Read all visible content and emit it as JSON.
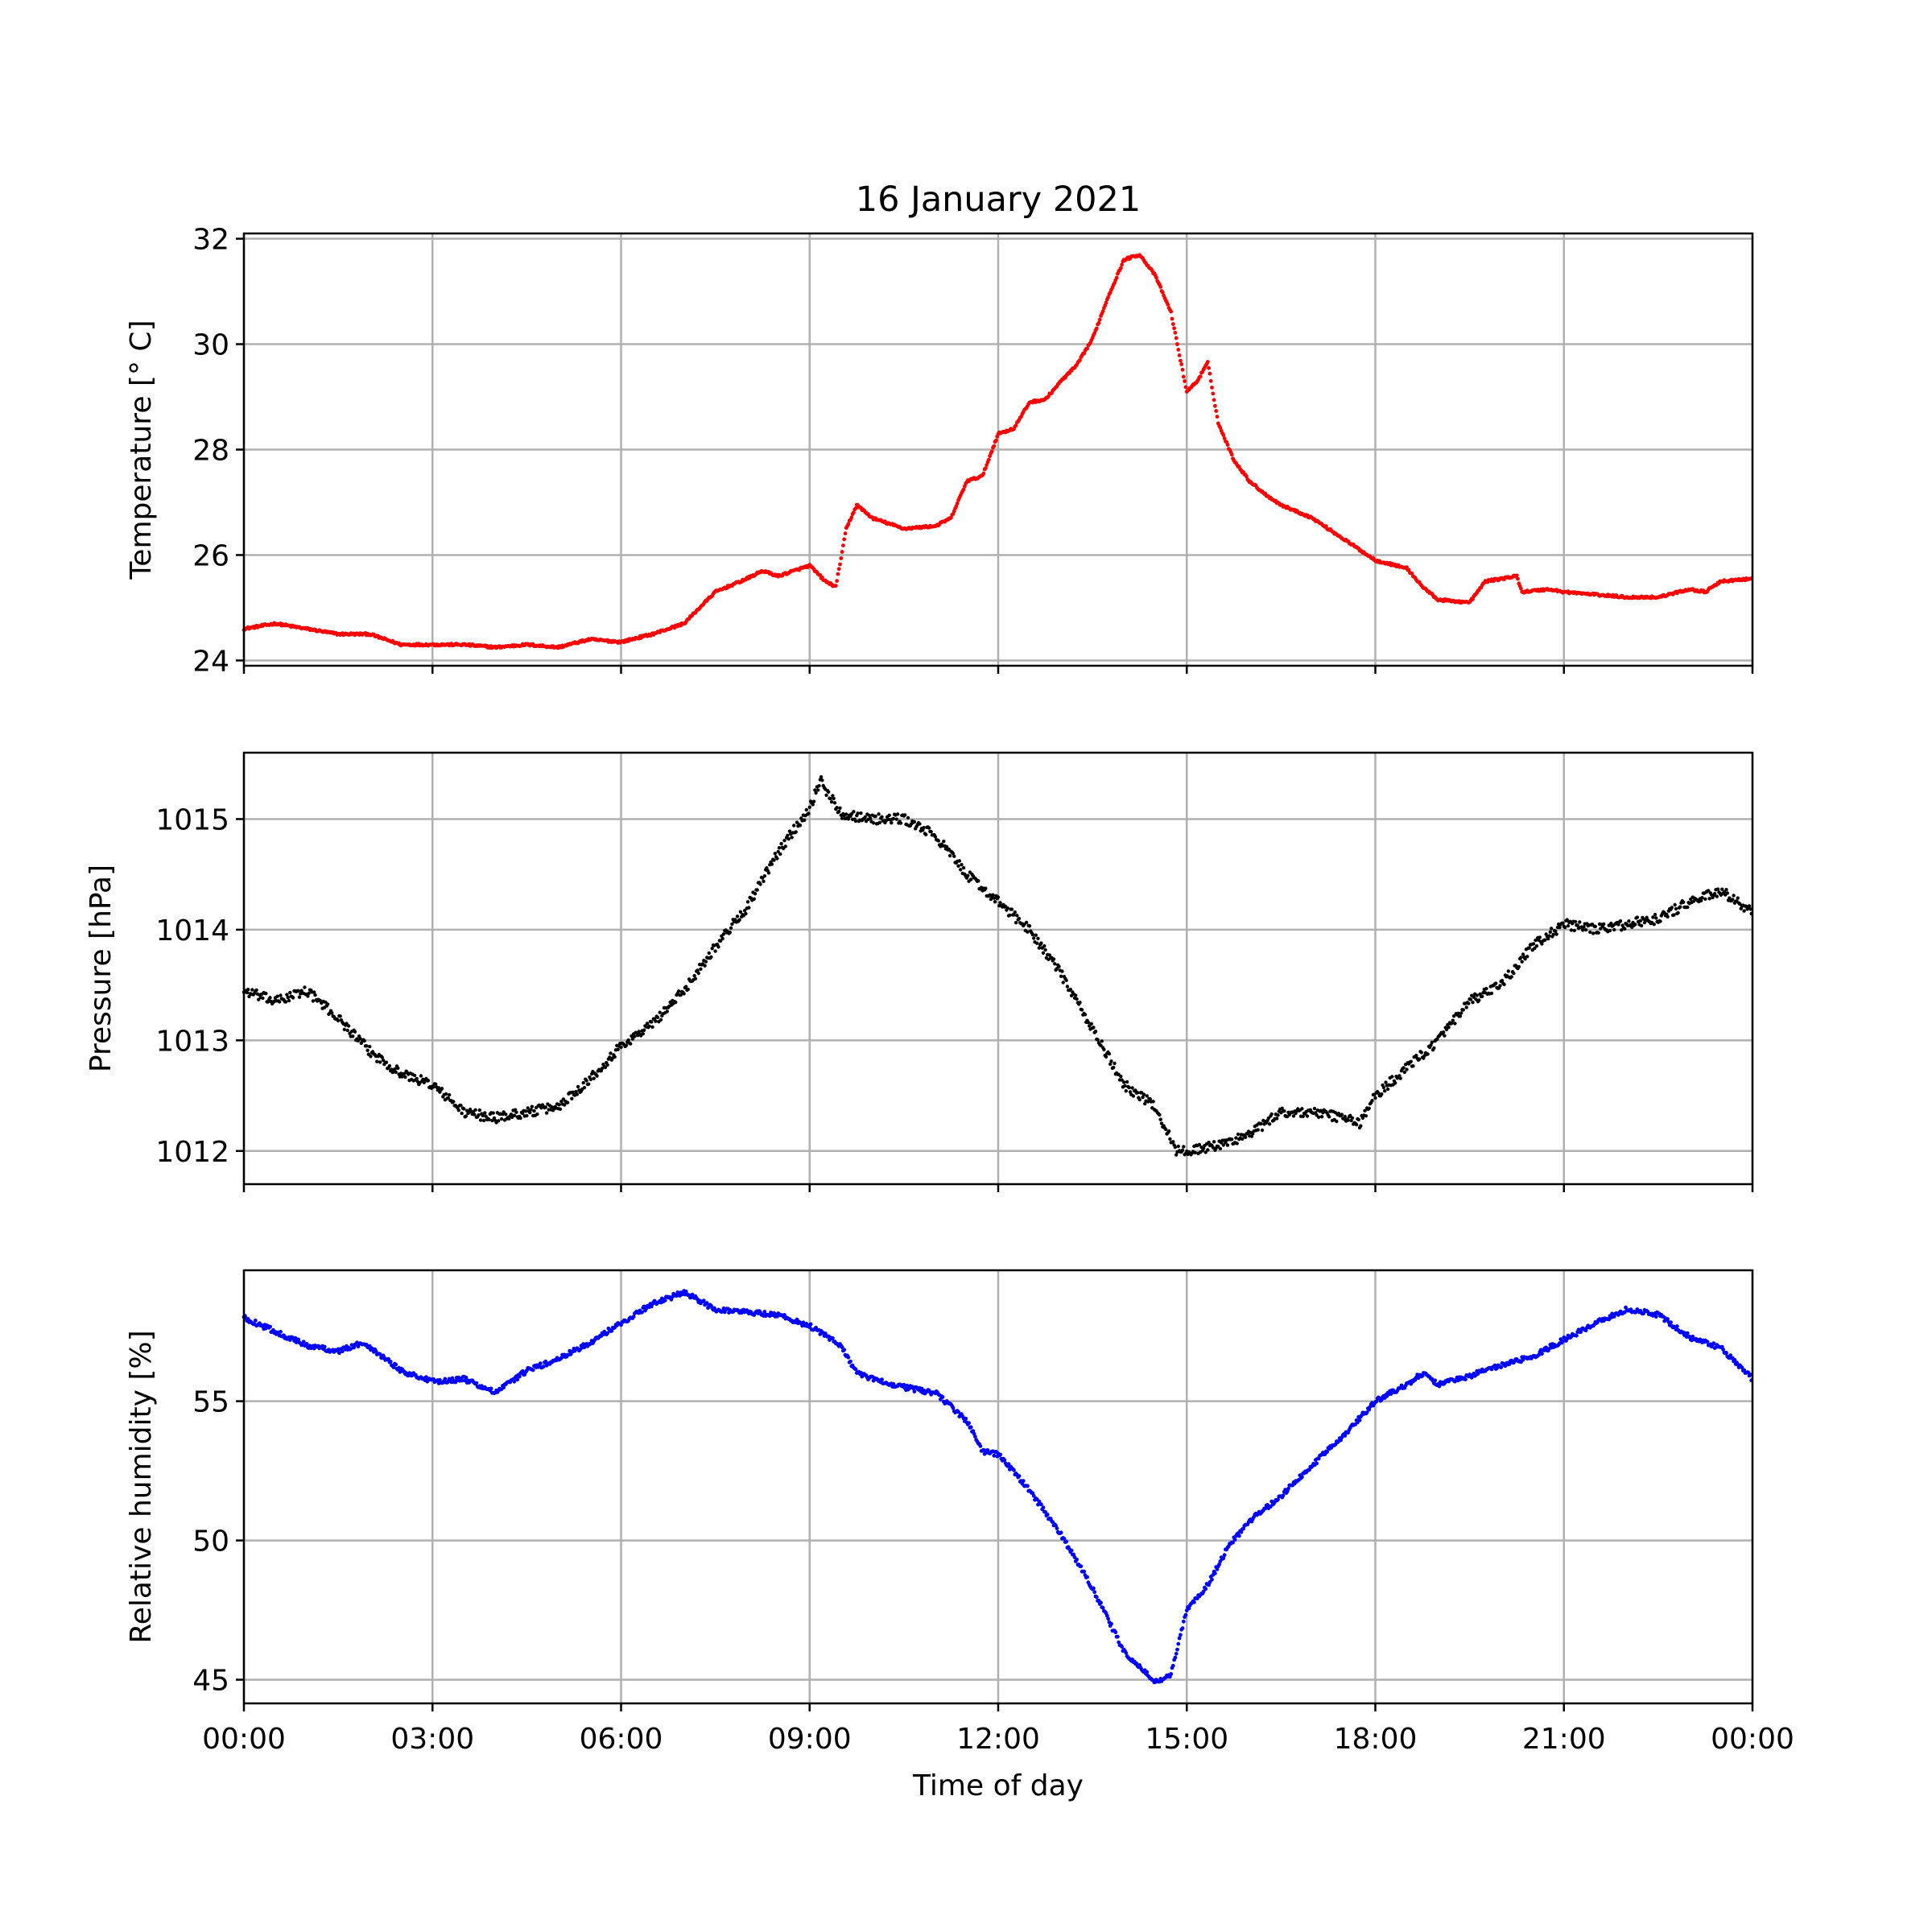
{
  "chart_data": {
    "title": "16 January 2021",
    "type": "scatter",
    "x_unit": "time of day",
    "xlim": [
      "00:00",
      "24:00"
    ],
    "x_tick_labels": [
      "00:00",
      "03:00",
      "06:00",
      "09:00",
      "12:00",
      "15:00",
      "18:00",
      "21:00",
      "00:00"
    ],
    "xlabel": "Time of day",
    "grid": true,
    "panels": [
      {
        "ylabel": "Temperature [° C]",
        "color": "#ff0000",
        "ylim": [
          23.9,
          32.1
        ],
        "y_ticks": [
          24,
          26,
          28,
          30,
          32
        ],
        "y_tick_labels": [
          "24",
          "26",
          "28",
          "30",
          "32"
        ],
        "points": [
          [
            "00:00",
            24.6
          ],
          [
            "00:30",
            24.7
          ],
          [
            "01:00",
            24.6
          ],
          [
            "01:30",
            24.5
          ],
          [
            "02:00",
            24.5
          ],
          [
            "02:30",
            24.3
          ],
          [
            "03:00",
            24.3
          ],
          [
            "03:30",
            24.3
          ],
          [
            "04:00",
            24.25
          ],
          [
            "04:30",
            24.3
          ],
          [
            "05:00",
            24.25
          ],
          [
            "05:30",
            24.4
          ],
          [
            "06:00",
            24.35
          ],
          [
            "06:30",
            24.5
          ],
          [
            "07:00",
            24.7
          ],
          [
            "07:30",
            25.3
          ],
          [
            "08:00",
            25.55
          ],
          [
            "08:15",
            25.7
          ],
          [
            "08:30",
            25.6
          ],
          [
            "09:00",
            25.8
          ],
          [
            "09:15",
            25.5
          ],
          [
            "09:25",
            25.4
          ],
          [
            "09:35",
            26.5
          ],
          [
            "09:45",
            26.95
          ],
          [
            "10:00",
            26.7
          ],
          [
            "10:30",
            26.5
          ],
          [
            "11:00",
            26.55
          ],
          [
            "11:15",
            26.7
          ],
          [
            "11:30",
            27.4
          ],
          [
            "11:45",
            27.5
          ],
          [
            "12:00",
            28.3
          ],
          [
            "12:15",
            28.4
          ],
          [
            "12:30",
            28.9
          ],
          [
            "12:45",
            28.95
          ],
          [
            "13:00",
            29.3
          ],
          [
            "13:15",
            29.6
          ],
          [
            "13:30",
            30.1
          ],
          [
            "13:45",
            30.9
          ],
          [
            "14:00",
            31.6
          ],
          [
            "14:15",
            31.7
          ],
          [
            "14:30",
            31.3
          ],
          [
            "14:45",
            30.6
          ],
          [
            "15:00",
            29.1
          ],
          [
            "15:10",
            29.3
          ],
          [
            "15:20",
            29.65
          ],
          [
            "15:30",
            28.5
          ],
          [
            "15:45",
            27.8
          ],
          [
            "16:00",
            27.4
          ],
          [
            "16:15",
            27.15
          ],
          [
            "16:30",
            26.95
          ],
          [
            "17:00",
            26.7
          ],
          [
            "17:30",
            26.3
          ],
          [
            "18:00",
            25.9
          ],
          [
            "18:30",
            25.75
          ],
          [
            "18:45",
            25.4
          ],
          [
            "19:00",
            25.15
          ],
          [
            "19:30",
            25.1
          ],
          [
            "19:45",
            25.5
          ],
          [
            "20:00",
            25.55
          ],
          [
            "20:15",
            25.6
          ],
          [
            "20:20",
            25.3
          ],
          [
            "20:45",
            25.35
          ],
          [
            "21:00",
            25.3
          ],
          [
            "21:30",
            25.25
          ],
          [
            "22:00",
            25.2
          ],
          [
            "22:30",
            25.2
          ],
          [
            "23:00",
            25.35
          ],
          [
            "23:15",
            25.3
          ],
          [
            "23:30",
            25.5
          ],
          [
            "24:00",
            25.55
          ]
        ]
      },
      {
        "ylabel": "Pressure [hPa]",
        "color": "#000000",
        "ylim": [
          1011.7,
          1015.6
        ],
        "y_ticks": [
          1012,
          1013,
          1014,
          1015
        ],
        "y_tick_labels": [
          "1012",
          "1013",
          "1014",
          "1015"
        ],
        "points": [
          [
            "00:00",
            1013.45
          ],
          [
            "00:30",
            1013.35
          ],
          [
            "01:00",
            1013.45
          ],
          [
            "01:30",
            1013.2
          ],
          [
            "02:00",
            1012.9
          ],
          [
            "02:30",
            1012.7
          ],
          [
            "03:00",
            1012.6
          ],
          [
            "03:30",
            1012.35
          ],
          [
            "04:00",
            1012.3
          ],
          [
            "04:30",
            1012.35
          ],
          [
            "05:00",
            1012.4
          ],
          [
            "05:30",
            1012.65
          ],
          [
            "06:00",
            1012.95
          ],
          [
            "06:30",
            1013.15
          ],
          [
            "07:00",
            1013.45
          ],
          [
            "07:30",
            1013.85
          ],
          [
            "08:00",
            1014.2
          ],
          [
            "08:30",
            1014.7
          ],
          [
            "09:00",
            1015.1
          ],
          [
            "09:10",
            1015.35
          ],
          [
            "09:30",
            1015.05
          ],
          [
            "10:00",
            1015.0
          ],
          [
            "10:30",
            1015.0
          ],
          [
            "11:00",
            1014.85
          ],
          [
            "11:30",
            1014.5
          ],
          [
            "12:00",
            1014.25
          ],
          [
            "12:30",
            1014.0
          ],
          [
            "13:00",
            1013.6
          ],
          [
            "13:30",
            1013.1
          ],
          [
            "14:00",
            1012.6
          ],
          [
            "14:30",
            1012.4
          ],
          [
            "14:50",
            1012.0
          ],
          [
            "15:00",
            1012.0
          ],
          [
            "15:30",
            1012.05
          ],
          [
            "16:00",
            1012.15
          ],
          [
            "16:30",
            1012.35
          ],
          [
            "17:00",
            1012.35
          ],
          [
            "17:30",
            1012.3
          ],
          [
            "17:45",
            1012.25
          ],
          [
            "18:00",
            1012.5
          ],
          [
            "18:30",
            1012.75
          ],
          [
            "19:00",
            1013.0
          ],
          [
            "19:30",
            1013.35
          ],
          [
            "20:00",
            1013.5
          ],
          [
            "20:30",
            1013.85
          ],
          [
            "21:00",
            1014.05
          ],
          [
            "21:30",
            1014.0
          ],
          [
            "22:00",
            1014.05
          ],
          [
            "22:30",
            1014.1
          ],
          [
            "23:00",
            1014.25
          ],
          [
            "23:30",
            1014.35
          ],
          [
            "24:00",
            1014.15
          ]
        ]
      },
      {
        "ylabel": "Relative humidity [%]",
        "color": "#0000ff",
        "ylim": [
          44.15,
          59.7
        ],
        "y_ticks": [
          45,
          50,
          55
        ],
        "y_tick_labels": [
          "45",
          "50",
          "55"
        ],
        "points": [
          [
            "00:00",
            58.0
          ],
          [
            "00:30",
            57.5
          ],
          [
            "01:00",
            57.0
          ],
          [
            "01:30",
            56.8
          ],
          [
            "01:55",
            57.1
          ],
          [
            "02:30",
            56.1
          ],
          [
            "03:00",
            55.7
          ],
          [
            "03:30",
            55.8
          ],
          [
            "04:00",
            55.3
          ],
          [
            "04:30",
            56.1
          ],
          [
            "05:00",
            56.5
          ],
          [
            "05:30",
            57.1
          ],
          [
            "06:00",
            57.8
          ],
          [
            "06:30",
            58.5
          ],
          [
            "07:00",
            58.9
          ],
          [
            "07:30",
            58.3
          ],
          [
            "08:00",
            58.2
          ],
          [
            "08:30",
            58.1
          ],
          [
            "09:00",
            57.7
          ],
          [
            "09:30",
            57.0
          ],
          [
            "09:45",
            56.0
          ],
          [
            "10:00",
            55.8
          ],
          [
            "10:30",
            55.5
          ],
          [
            "11:00",
            55.3
          ],
          [
            "11:30",
            54.3
          ],
          [
            "11:45",
            53.2
          ],
          [
            "12:00",
            53.1
          ],
          [
            "12:30",
            51.8
          ],
          [
            "13:00",
            50.2
          ],
          [
            "13:30",
            48.3
          ],
          [
            "14:00",
            46.0
          ],
          [
            "14:30",
            44.9
          ],
          [
            "14:45",
            45.2
          ],
          [
            "15:00",
            47.5
          ],
          [
            "15:20",
            48.4
          ],
          [
            "15:40",
            49.8
          ],
          [
            "16:00",
            50.7
          ],
          [
            "16:30",
            51.6
          ],
          [
            "17:00",
            52.7
          ],
          [
            "17:30",
            53.8
          ],
          [
            "18:00",
            55.0
          ],
          [
            "18:30",
            55.6
          ],
          [
            "18:45",
            56.0
          ],
          [
            "19:00",
            55.6
          ],
          [
            "19:30",
            55.9
          ],
          [
            "20:00",
            56.3
          ],
          [
            "20:30",
            56.6
          ],
          [
            "21:00",
            57.2
          ],
          [
            "21:30",
            57.8
          ],
          [
            "22:00",
            58.3
          ],
          [
            "22:30",
            58.1
          ],
          [
            "23:00",
            57.3
          ],
          [
            "23:30",
            56.9
          ],
          [
            "24:00",
            55.8
          ]
        ]
      }
    ]
  }
}
